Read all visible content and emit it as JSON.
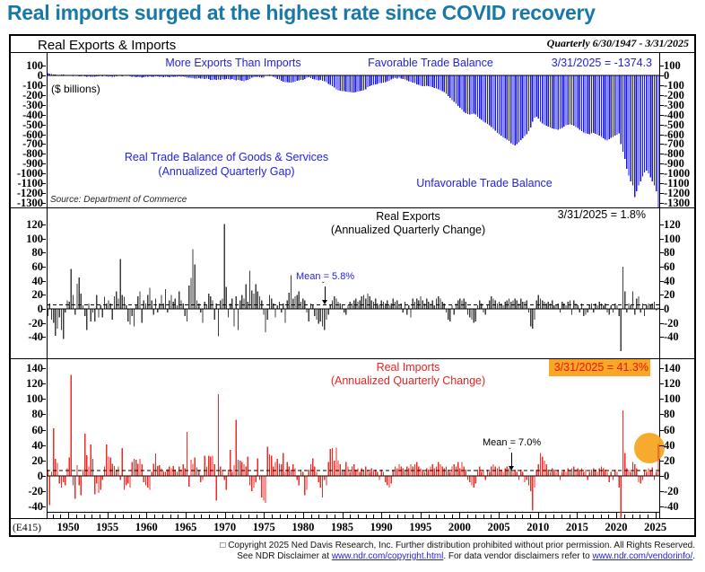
{
  "headline": "Real imports surged at the highest rate since COVID recovery",
  "chart": {
    "title": "Real Exports & Imports",
    "period": "Quarterly 6/30/1947 - 3/31/2025",
    "source": "Source: Department of Commerce",
    "series_code": "(E415)",
    "x_axis": {
      "start": "1947Q2",
      "end": "2025Q1",
      "year_labels": [
        1950,
        1955,
        1960,
        1965,
        1970,
        1975,
        1980,
        1985,
        1990,
        1995,
        2000,
        2005,
        2010,
        2015,
        2020,
        2025
      ],
      "tick_years_from": 1948,
      "tick_years_to": 2025
    },
    "footer": {
      "line1": "□ Copyright 2025 Ned Davis Research, Inc.  Further distribution prohibited without prior permission.  All Rights Reserved.",
      "line2": [
        {
          "t": "See NDR Disclaimer at "
        },
        {
          "t": "www.ndr.com/copyright.html",
          "link": true
        },
        {
          "t": ". For data vendor disclaimers refer to "
        },
        {
          "t": "www.ndr.com/vendorinfo/",
          "link": true
        },
        {
          "t": "."
        }
      ]
    }
  },
  "chart_data": [
    {
      "type": "bar",
      "name": "Real Trade Balance of Goods & Services",
      "frequency": "quarterly",
      "start": "1947Q2",
      "color": "#1414f0",
      "ticks": [
        100,
        0,
        -100,
        -200,
        -300,
        -400,
        -500,
        -600,
        -700,
        -800,
        -900,
        -1000,
        -1100,
        -1200,
        -1300
      ],
      "ylim": [
        -1346,
        238
      ],
      "mean": null,
      "last_value": -1374.3,
      "labels": {
        "above": "More Exports Than Imports",
        "favorable": "Favorable Trade Balance",
        "unfavorable": "Unfavorable Trade Balance",
        "date_value": "3/31/2025 = -1374.3",
        "title1": "Real Trade Balance of Goods & Services",
        "title2": "(Annualized Quarterly Gap)",
        "units": "($ billions)"
      },
      "values": [
        25,
        20,
        15,
        10,
        8,
        5,
        6,
        8,
        10,
        6,
        4,
        2,
        -5,
        -8,
        -6,
        -4,
        -8,
        -10,
        -6,
        -8,
        -12,
        -10,
        -14,
        -12,
        -15,
        -10,
        -8,
        -6,
        -8,
        -5,
        -10,
        -12,
        -10,
        -14,
        -12,
        -8,
        -5,
        -6,
        -10,
        -4,
        -2,
        -5,
        -8,
        -12,
        -15,
        -18,
        -14,
        -20,
        -22,
        -18,
        -16,
        -12,
        -10,
        -14,
        -12,
        -10,
        -8,
        -12,
        -15,
        -18,
        -16,
        -14,
        -18,
        -15,
        -12,
        -16,
        -14,
        -10,
        -12,
        -8,
        -14,
        -25,
        -22,
        -26,
        -28,
        -30,
        -32,
        -28,
        -34,
        -30,
        -35,
        -32,
        -38,
        -45,
        -48,
        -42,
        -46,
        -40,
        -44,
        -38,
        -42,
        -35,
        -38,
        -42,
        -36,
        -45,
        -50,
        -48,
        -52,
        -55,
        -58,
        -52,
        -48,
        -35,
        -25,
        -18,
        -12,
        -15,
        -20,
        -25,
        -22,
        -5,
        2,
        8,
        5,
        -15,
        -25,
        -35,
        -40,
        -55,
        -65,
        -70,
        -68,
        -72,
        -75,
        -70,
        -65,
        -55,
        -50,
        -45,
        -48,
        -35,
        -25,
        -20,
        -28,
        -35,
        -40,
        -45,
        -50,
        -45,
        -55,
        -60,
        -70,
        -85,
        -95,
        -110,
        -125,
        -140,
        -150,
        -155,
        -160,
        -160,
        -165,
        -170,
        -168,
        -172,
        -175,
        -170,
        -165,
        -160,
        -155,
        -150,
        -140,
        -120,
        -110,
        -100,
        -95,
        -90,
        -85,
        -80,
        -78,
        -72,
        -68,
        -60,
        -55,
        -40,
        -32,
        -28,
        -30,
        -25,
        -30,
        -35,
        -40,
        -50,
        -58,
        -65,
        -72,
        -80,
        -90,
        -95,
        -105,
        -110,
        -108,
        -105,
        -110,
        -115,
        -120,
        -128,
        -135,
        -140,
        -150,
        -160,
        -170,
        -190,
        -210,
        -230,
        -250,
        -270,
        -290,
        -310,
        -330,
        -350,
        -370,
        -385,
        -395,
        -400,
        -395,
        -390,
        -400,
        -420,
        -440,
        -455,
        -470,
        -480,
        -495,
        -510,
        -525,
        -545,
        -565,
        -585,
        -600,
        -615,
        -630,
        -640,
        -655,
        -670,
        -690,
        -705,
        -715,
        -700,
        -680,
        -660,
        -640,
        -620,
        -600,
        -570,
        -530,
        -470,
        -430,
        -420,
        -440,
        -470,
        -490,
        -505,
        -515,
        -520,
        -530,
        -540,
        -545,
        -550,
        -555,
        -545,
        -535,
        -520,
        -510,
        -505,
        -500,
        -505,
        -515,
        -525,
        -535,
        -555,
        -570,
        -580,
        -590,
        -595,
        -600,
        -590,
        -585,
        -595,
        -605,
        -615,
        -625,
        -640,
        -655,
        -665,
        -650,
        -635,
        -625,
        -615,
        -605,
        -590,
        -700,
        -780,
        -850,
        -950,
        -1020,
        -1080,
        -1120,
        -1240,
        -1180,
        -1120,
        -1080,
        -1030,
        -990,
        -970,
        -1000,
        -1040,
        -1080,
        -1120,
        -1180,
        -1374.3
      ]
    },
    {
      "type": "bar",
      "name": "Real Exports",
      "frequency": "quarterly",
      "start": "1947Q2",
      "color": "#3c3c3c",
      "ticks": [
        120,
        100,
        80,
        60,
        40,
        20,
        0,
        -20,
        -40
      ],
      "ylim": [
        -70.2,
        144.3
      ],
      "mean": 5.8,
      "last_value": 1.8,
      "labels": {
        "title1": "Real Exports",
        "title2": "(Annualized Quarterly Change)",
        "date_value": "3/31/2025 = 1.8%",
        "mean_label": "Mean = 5.8%"
      },
      "values": [
        -10,
        8,
        -15,
        -20,
        -38,
        -28,
        -12,
        -30,
        -43,
        -5,
        12,
        10,
        57,
        20,
        -8,
        36,
        45,
        22,
        5,
        -10,
        -30,
        8,
        -18,
        -5,
        -18,
        20,
        -12,
        5,
        -12,
        17,
        8,
        12,
        8,
        -15,
        18,
        25,
        15,
        71,
        20,
        17,
        5,
        -18,
        -22,
        -10,
        -25,
        5,
        18,
        25,
        -20,
        12,
        8,
        20,
        30,
        12,
        -8,
        15,
        -5,
        8,
        20,
        8,
        28,
        -5,
        12,
        20,
        10,
        15,
        5,
        25,
        12,
        8,
        -10,
        -18,
        33,
        44,
        85,
        63,
        12,
        8,
        -5,
        -20,
        10,
        5,
        22,
        18,
        12,
        -15,
        8,
        -39,
        12,
        15,
        121,
        31,
        -12,
        8,
        15,
        -25,
        18,
        -30,
        12,
        20,
        15,
        35,
        10,
        54,
        26,
        22,
        35,
        25,
        18,
        12,
        -8,
        -33,
        -15,
        20,
        15,
        8,
        -12,
        5,
        10,
        -5,
        8,
        -20,
        12,
        23,
        48,
        15,
        18,
        20,
        25,
        10,
        15,
        12,
        -5,
        -18,
        8,
        5,
        -10,
        -15,
        -21,
        -18,
        -25,
        -30,
        -15,
        -8,
        5,
        12,
        18,
        15,
        10,
        8,
        5,
        -5,
        -8,
        5,
        10,
        8,
        12,
        15,
        10,
        12,
        18,
        20,
        15,
        22,
        18,
        12,
        10,
        15,
        8,
        5,
        12,
        10,
        8,
        12,
        5,
        8,
        15,
        10,
        12,
        5,
        8,
        -5,
        10,
        -8,
        5,
        -12,
        15,
        10,
        15,
        12,
        18,
        12,
        8,
        15,
        10,
        8,
        12,
        5,
        15,
        18,
        15,
        10,
        8,
        -5,
        -15,
        -18,
        5,
        -8,
        8,
        12,
        15,
        12,
        15,
        10,
        -8,
        -12,
        -15,
        -20,
        -18,
        5,
        12,
        8,
        -5,
        -8,
        5,
        12,
        18,
        15,
        12,
        8,
        10,
        8,
        5,
        10,
        12,
        15,
        10,
        12,
        15,
        12,
        8,
        15,
        10,
        10,
        12,
        -5,
        -25,
        -28,
        -15,
        12,
        20,
        15,
        12,
        10,
        8,
        10,
        8,
        12,
        5,
        5,
        8,
        -5,
        10,
        8,
        5,
        10,
        12,
        -8,
        12,
        8,
        5,
        -5,
        8,
        -10,
        -8,
        -5,
        5,
        8,
        -5,
        8,
        5,
        10,
        8,
        5,
        8,
        -5,
        -8,
        5,
        -5,
        8,
        5,
        -10,
        -60,
        60,
        25,
        -5,
        8,
        5,
        25,
        -8,
        15,
        18,
        -5,
        8,
        -10,
        5,
        8,
        5,
        8,
        10,
        -2,
        1.8
      ]
    },
    {
      "type": "bar",
      "name": "Real Imports",
      "frequency": "quarterly",
      "start": "1947Q2",
      "color": "#ef2b24",
      "ticks": [
        140,
        120,
        100,
        80,
        60,
        40,
        20,
        0,
        -20,
        -40
      ],
      "ylim": [
        -56,
        152.8
      ],
      "mean": 7.0,
      "last_value": 41.3,
      "labels": {
        "title1": "Real Imports",
        "title2": "(Annualized Quarterly Change)",
        "date_value": "3/31/2025 = 41.3%",
        "mean_label": "Mean = 7.0%"
      },
      "values": [
        8,
        -38,
        5,
        62,
        22,
        17,
        -10,
        -15,
        -8,
        -12,
        10,
        24,
        131,
        -12,
        -30,
        14,
        -12,
        -25,
        8,
        55,
        27,
        12,
        41,
        22,
        -24,
        -10,
        -22,
        -18,
        -5,
        12,
        41,
        25,
        24,
        16,
        13,
        8,
        12,
        -5,
        36,
        -18,
        -12,
        -10,
        -15,
        18,
        22,
        21,
        16,
        22,
        15,
        -8,
        -12,
        -15,
        -18,
        5,
        16,
        29,
        13,
        14,
        10,
        6,
        5,
        9,
        12,
        10,
        13,
        8,
        5,
        12,
        8,
        15,
        10,
        57,
        -14,
        21,
        16,
        24,
        11,
        8,
        -8,
        -5,
        26,
        12,
        26,
        25,
        26,
        15,
        -32,
        106,
        12,
        8,
        -5,
        -18,
        8,
        34,
        5,
        14,
        73,
        21,
        20,
        18,
        15,
        12,
        25,
        -12,
        -20,
        -15,
        -8,
        23,
        -5,
        -28,
        -32,
        -35,
        38,
        28,
        26,
        12,
        18,
        22,
        16,
        15,
        30,
        5,
        18,
        12,
        8,
        15,
        10,
        -5,
        -12,
        8,
        5,
        -25,
        -18,
        8,
        15,
        23,
        12,
        5,
        -8,
        -15,
        -28,
        -5,
        -12,
        18,
        35,
        36,
        20,
        37,
        20,
        15,
        8,
        8,
        18,
        12,
        5,
        12,
        15,
        8,
        10,
        5,
        10,
        8,
        12,
        8,
        5,
        10,
        6,
        8,
        5,
        -5,
        8,
        5,
        -8,
        -12,
        -15,
        -10,
        8,
        12,
        10,
        15,
        12,
        10,
        8,
        12,
        10,
        15,
        12,
        15,
        18,
        12,
        10,
        8,
        5,
        10,
        8,
        12,
        15,
        10,
        12,
        18,
        15,
        12,
        10,
        12,
        8,
        5,
        12,
        15,
        12,
        18,
        10,
        18,
        12,
        8,
        -5,
        -8,
        -12,
        -15,
        -10,
        8,
        12,
        5,
        8,
        -5,
        8,
        5,
        12,
        15,
        12,
        10,
        12,
        8,
        5,
        10,
        12,
        10,
        8,
        5,
        8,
        5,
        -5,
        8,
        5,
        -8,
        -5,
        -12,
        -20,
        -45,
        -15,
        8,
        15,
        30,
        25,
        20,
        15,
        8,
        5,
        10,
        8,
        5,
        8,
        -5,
        5,
        8,
        5,
        10,
        8,
        10,
        12,
        8,
        10,
        8,
        10,
        5,
        8,
        -5,
        5,
        8,
        10,
        8,
        5,
        10,
        12,
        10,
        8,
        5,
        -8,
        5,
        -5,
        8,
        5,
        -15,
        -55,
        85,
        30,
        10,
        8,
        5,
        18,
        15,
        10,
        -8,
        -10,
        -5,
        8,
        5,
        10,
        7,
        11,
        -5,
        5,
        41.3
      ]
    }
  ]
}
